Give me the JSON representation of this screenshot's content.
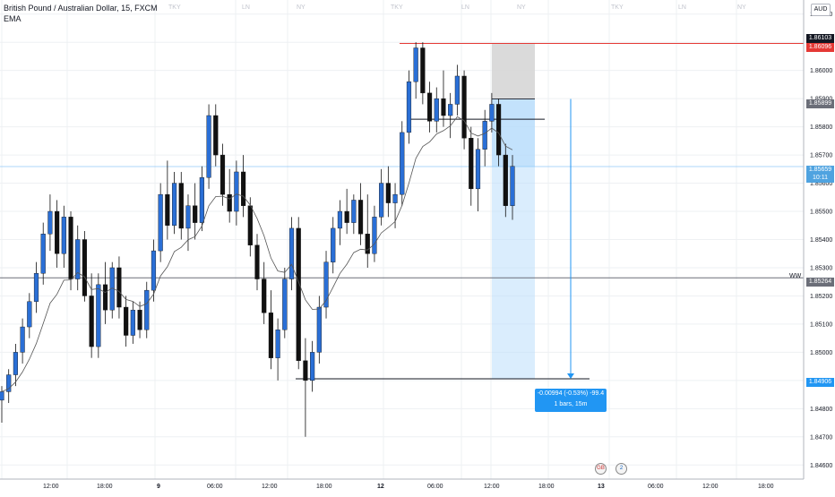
{
  "header": {
    "symbol": "British Pound / Australian Dollar, 15, FXCM",
    "indicator": "EMA"
  },
  "currency": "AUD",
  "colors": {
    "up": "#2a6fd6",
    "down": "#111111",
    "ema": "#555555",
    "resistance": "#e53935",
    "target_fill": "#bbdefb",
    "stop_fill": "#d6d6d6",
    "current_price": "#90caf9"
  },
  "chart_data": {
    "type": "candlestick",
    "ylim": [
      1.8455,
      1.8625
    ],
    "y_ticks": [
      "1.86200",
      "1.86100",
      "1.86000",
      "1.85900",
      "1.85800",
      "1.85700",
      "1.85600",
      "1.85500",
      "1.85400",
      "1.85300",
      "1.85200",
      "1.85100",
      "1.85000",
      "1.84900",
      "1.84800",
      "1.84700",
      "1.84600"
    ],
    "x_ticks": [
      "12:00",
      "18:00",
      "9",
      "06:00",
      "12:00",
      "18:00",
      "12",
      "06:00",
      "12:00",
      "18:00",
      "13",
      "06:00",
      "12:00",
      "18:00"
    ],
    "session_labels": [
      "TKY",
      "LN",
      "NY",
      "TKY",
      "LN",
      "NY",
      "TKY",
      "LN",
      "NY"
    ],
    "levels": {
      "resistance": 1.86096,
      "resistance_tag": "1.86096",
      "high_tag": "1.86103",
      "entry": 1.85899,
      "entry_tag": "1.85899",
      "current": 1.85659,
      "current_tag": "1.85659",
      "countdown": "10:11",
      "weekly": 1.85264,
      "weekly_tag": "1.85264",
      "weekly_label": "WW",
      "target": 1.84906,
      "target_tag": "1.84906"
    },
    "measure": {
      "line1": "-0.00994 (-0.53%) -99.4",
      "line2": "1 bars, 15m"
    },
    "candles": [
      {
        "o": 1.8483,
        "h": 1.8488,
        "l": 1.8475,
        "c": 1.8486
      },
      {
        "o": 1.8486,
        "h": 1.8494,
        "l": 1.8482,
        "c": 1.8492
      },
      {
        "o": 1.8492,
        "h": 1.8503,
        "l": 1.8488,
        "c": 1.85
      },
      {
        "o": 1.85,
        "h": 1.8512,
        "l": 1.8496,
        "c": 1.8509
      },
      {
        "o": 1.8509,
        "h": 1.8521,
        "l": 1.8505,
        "c": 1.8518
      },
      {
        "o": 1.8518,
        "h": 1.8532,
        "l": 1.8514,
        "c": 1.8528
      },
      {
        "o": 1.8528,
        "h": 1.8546,
        "l": 1.8524,
        "c": 1.8542
      },
      {
        "o": 1.8542,
        "h": 1.8556,
        "l": 1.8536,
        "c": 1.855
      },
      {
        "o": 1.855,
        "h": 1.8554,
        "l": 1.853,
        "c": 1.8535
      },
      {
        "o": 1.8535,
        "h": 1.8552,
        "l": 1.853,
        "c": 1.8548
      },
      {
        "o": 1.8548,
        "h": 1.855,
        "l": 1.8522,
        "c": 1.8526
      },
      {
        "o": 1.8526,
        "h": 1.8545,
        "l": 1.8522,
        "c": 1.854
      },
      {
        "o": 1.854,
        "h": 1.8543,
        "l": 1.8518,
        "c": 1.852
      },
      {
        "o": 1.852,
        "h": 1.8528,
        "l": 1.8498,
        "c": 1.8502
      },
      {
        "o": 1.8502,
        "h": 1.8528,
        "l": 1.8498,
        "c": 1.8524
      },
      {
        "o": 1.8524,
        "h": 1.8532,
        "l": 1.851,
        "c": 1.8515
      },
      {
        "o": 1.8515,
        "h": 1.8532,
        "l": 1.8512,
        "c": 1.853
      },
      {
        "o": 1.853,
        "h": 1.8534,
        "l": 1.8512,
        "c": 1.8516
      },
      {
        "o": 1.8516,
        "h": 1.852,
        "l": 1.8502,
        "c": 1.8506
      },
      {
        "o": 1.8506,
        "h": 1.8518,
        "l": 1.8503,
        "c": 1.8515
      },
      {
        "o": 1.8515,
        "h": 1.8518,
        "l": 1.8505,
        "c": 1.8508
      },
      {
        "o": 1.8508,
        "h": 1.8525,
        "l": 1.8505,
        "c": 1.8522
      },
      {
        "o": 1.8522,
        "h": 1.854,
        "l": 1.8518,
        "c": 1.8536
      },
      {
        "o": 1.8536,
        "h": 1.856,
        "l": 1.8532,
        "c": 1.8556
      },
      {
        "o": 1.8556,
        "h": 1.8568,
        "l": 1.854,
        "c": 1.8545
      },
      {
        "o": 1.8545,
        "h": 1.8564,
        "l": 1.8542,
        "c": 1.856
      },
      {
        "o": 1.856,
        "h": 1.8564,
        "l": 1.854,
        "c": 1.8544
      },
      {
        "o": 1.8544,
        "h": 1.8556,
        "l": 1.8536,
        "c": 1.8552
      },
      {
        "o": 1.8552,
        "h": 1.856,
        "l": 1.854,
        "c": 1.8546
      },
      {
        "o": 1.8546,
        "h": 1.8566,
        "l": 1.8543,
        "c": 1.8562
      },
      {
        "o": 1.8562,
        "h": 1.8588,
        "l": 1.8558,
        "c": 1.8584
      },
      {
        "o": 1.8584,
        "h": 1.8588,
        "l": 1.8566,
        "c": 1.857
      },
      {
        "o": 1.857,
        "h": 1.8574,
        "l": 1.8552,
        "c": 1.8556
      },
      {
        "o": 1.8556,
        "h": 1.8565,
        "l": 1.8546,
        "c": 1.855
      },
      {
        "o": 1.855,
        "h": 1.8568,
        "l": 1.8545,
        "c": 1.8564
      },
      {
        "o": 1.8564,
        "h": 1.857,
        "l": 1.8548,
        "c": 1.8552
      },
      {
        "o": 1.8552,
        "h": 1.8555,
        "l": 1.8534,
        "c": 1.8538
      },
      {
        "o": 1.8538,
        "h": 1.8542,
        "l": 1.8522,
        "c": 1.8526
      },
      {
        "o": 1.8526,
        "h": 1.8532,
        "l": 1.851,
        "c": 1.8514
      },
      {
        "o": 1.8514,
        "h": 1.8522,
        "l": 1.8494,
        "c": 1.8498
      },
      {
        "o": 1.8498,
        "h": 1.8512,
        "l": 1.849,
        "c": 1.8508
      },
      {
        "o": 1.8508,
        "h": 1.853,
        "l": 1.8505,
        "c": 1.8526
      },
      {
        "o": 1.8526,
        "h": 1.8548,
        "l": 1.8522,
        "c": 1.8544
      },
      {
        "o": 1.8544,
        "h": 1.8548,
        "l": 1.8494,
        "c": 1.8497
      },
      {
        "o": 1.8497,
        "h": 1.8505,
        "l": 1.847,
        "c": 1.849
      },
      {
        "o": 1.849,
        "h": 1.8504,
        "l": 1.8486,
        "c": 1.85
      },
      {
        "o": 1.85,
        "h": 1.852,
        "l": 1.8496,
        "c": 1.8516
      },
      {
        "o": 1.8516,
        "h": 1.8536,
        "l": 1.8512,
        "c": 1.8532
      },
      {
        "o": 1.8532,
        "h": 1.8548,
        "l": 1.8528,
        "c": 1.8544
      },
      {
        "o": 1.8544,
        "h": 1.8554,
        "l": 1.8538,
        "c": 1.855
      },
      {
        "o": 1.855,
        "h": 1.8558,
        "l": 1.8542,
        "c": 1.8546
      },
      {
        "o": 1.8546,
        "h": 1.8556,
        "l": 1.8542,
        "c": 1.8554
      },
      {
        "o": 1.8554,
        "h": 1.856,
        "l": 1.8538,
        "c": 1.8542
      },
      {
        "o": 1.8542,
        "h": 1.8556,
        "l": 1.853,
        "c": 1.8535
      },
      {
        "o": 1.8535,
        "h": 1.8552,
        "l": 1.8532,
        "c": 1.8548
      },
      {
        "o": 1.8548,
        "h": 1.8565,
        "l": 1.8545,
        "c": 1.856
      },
      {
        "o": 1.856,
        "h": 1.8566,
        "l": 1.8548,
        "c": 1.8553
      },
      {
        "o": 1.8553,
        "h": 1.856,
        "l": 1.8544,
        "c": 1.8556
      },
      {
        "o": 1.8556,
        "h": 1.8582,
        "l": 1.8552,
        "c": 1.8578
      },
      {
        "o": 1.8578,
        "h": 1.86,
        "l": 1.8574,
        "c": 1.8596
      },
      {
        "o": 1.8596,
        "h": 1.861,
        "l": 1.859,
        "c": 1.8608
      },
      {
        "o": 1.8608,
        "h": 1.861,
        "l": 1.8588,
        "c": 1.8592
      },
      {
        "o": 1.8592,
        "h": 1.8596,
        "l": 1.8578,
        "c": 1.8582
      },
      {
        "o": 1.8582,
        "h": 1.8594,
        "l": 1.8578,
        "c": 1.859
      },
      {
        "o": 1.859,
        "h": 1.86,
        "l": 1.858,
        "c": 1.8584
      },
      {
        "o": 1.8584,
        "h": 1.8592,
        "l": 1.8576,
        "c": 1.8588
      },
      {
        "o": 1.8588,
        "h": 1.8602,
        "l": 1.8584,
        "c": 1.8598
      },
      {
        "o": 1.8598,
        "h": 1.86,
        "l": 1.8572,
        "c": 1.8576
      },
      {
        "o": 1.8576,
        "h": 1.858,
        "l": 1.8552,
        "c": 1.8558
      },
      {
        "o": 1.8558,
        "h": 1.8576,
        "l": 1.855,
        "c": 1.8572
      },
      {
        "o": 1.8572,
        "h": 1.8586,
        "l": 1.8566,
        "c": 1.8582
      },
      {
        "o": 1.8582,
        "h": 1.8592,
        "l": 1.8578,
        "c": 1.8588
      },
      {
        "o": 1.8588,
        "h": 1.859,
        "l": 1.8566,
        "c": 1.857
      },
      {
        "o": 1.857,
        "h": 1.8574,
        "l": 1.8548,
        "c": 1.8552
      },
      {
        "o": 1.8552,
        "h": 1.857,
        "l": 1.8547,
        "c": 1.8566
      }
    ],
    "ema_period": 10
  },
  "events": {
    "gb_label": "GB",
    "au_label": "2"
  }
}
